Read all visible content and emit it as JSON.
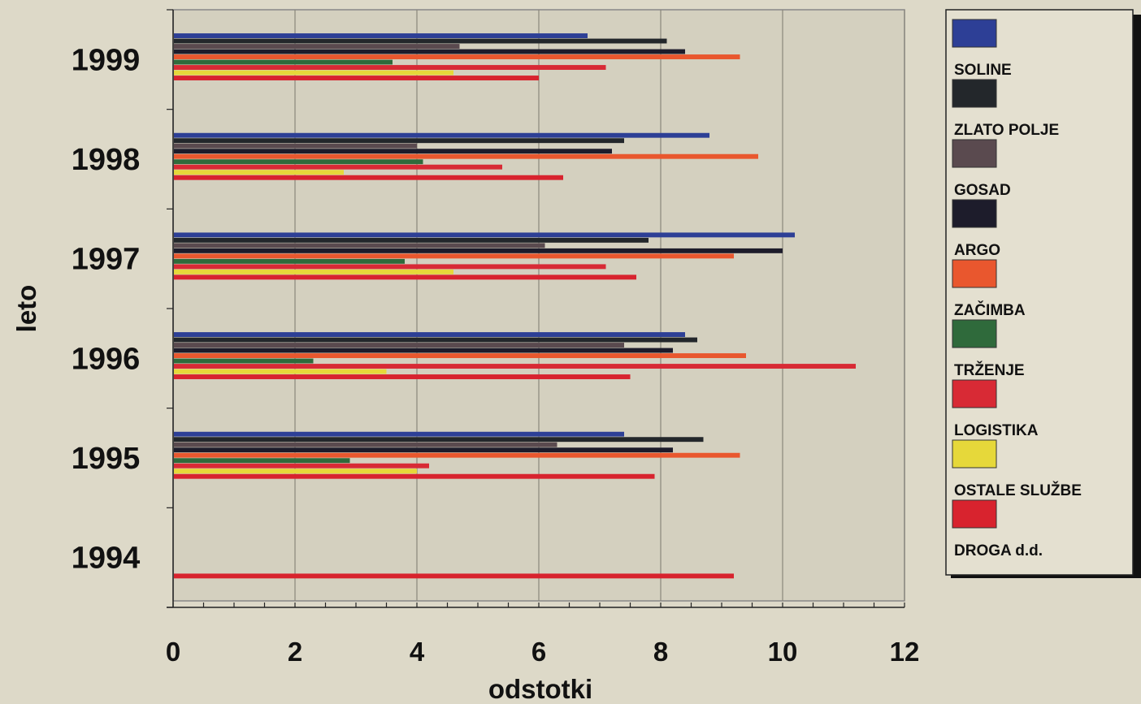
{
  "chart_data": {
    "type": "bar",
    "orientation": "horizontal",
    "xlabel": "odstotki",
    "ylabel": "leto",
    "xlim": [
      0,
      12
    ],
    "xticks": [
      "0",
      "2",
      "4",
      "6",
      "8",
      "10",
      "12"
    ],
    "grid": "vertical",
    "legend_position": "right",
    "categories": [
      "1999",
      "1998",
      "1997",
      "1996",
      "1995",
      "1994"
    ],
    "series": [
      {
        "name": "SOLINE",
        "color": "#2d3f96",
        "values": [
          6.8,
          8.8,
          10.2,
          8.4,
          7.4,
          null
        ]
      },
      {
        "name": "ZLATO POLJE",
        "color": "#23272b",
        "values": [
          8.1,
          7.4,
          7.8,
          8.6,
          8.7,
          null
        ]
      },
      {
        "name": "GOSAD",
        "color": "#5a4a4f",
        "values": [
          4.7,
          4.0,
          6.1,
          7.4,
          6.3,
          null
        ]
      },
      {
        "name": "ARGO",
        "color": "#1d1c2b",
        "values": [
          8.4,
          7.2,
          10.0,
          8.2,
          8.2,
          null
        ]
      },
      {
        "name": "ZAČIMBA",
        "color": "#e9572e",
        "values": [
          9.3,
          9.6,
          9.2,
          9.4,
          9.3,
          null
        ]
      },
      {
        "name": "TRŽENJE",
        "color": "#2f6a3b",
        "values": [
          3.6,
          4.1,
          3.8,
          2.3,
          2.9,
          null
        ]
      },
      {
        "name": "LOGISTIKA",
        "color": "#d82a35",
        "values": [
          7.1,
          5.4,
          7.1,
          11.2,
          4.2,
          null
        ]
      },
      {
        "name": "OSTALE SLUŽBE",
        "color": "#e6d83a",
        "values": [
          4.6,
          2.8,
          4.6,
          3.5,
          4.0,
          null
        ]
      },
      {
        "name": "DROGA d.d.",
        "color": "#d8232e",
        "values": [
          6.0,
          6.4,
          7.6,
          7.5,
          7.9,
          9.2
        ]
      }
    ]
  }
}
